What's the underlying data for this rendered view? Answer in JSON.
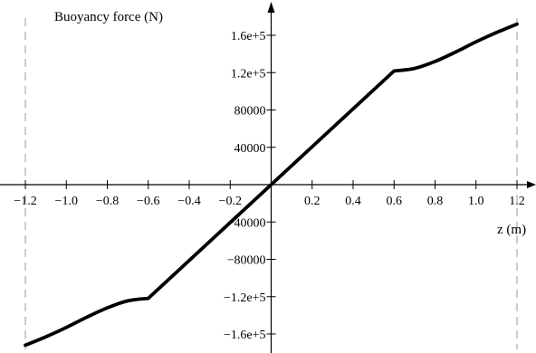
{
  "chart_data": {
    "type": "line",
    "title": "",
    "xlabel": "z (m)",
    "ylabel": "Buoyancy force (N)",
    "xlim": [
      -1.2,
      1.2
    ],
    "ylim": [
      -170000.0,
      180000.0
    ],
    "grid": false,
    "x_ticks": [
      -1.2,
      -1.0,
      -0.8,
      -0.6,
      -0.4,
      -0.2,
      0.2,
      0.4,
      0.6,
      0.8,
      1.0,
      1.2
    ],
    "x_tick_labels": [
      "−1.2",
      "−1.0",
      "−0.8",
      "−0.6",
      "−0.4",
      "−0.2",
      "0.2",
      "0.4",
      "0.6",
      "0.8",
      "1.0",
      "1.2"
    ],
    "y_ticks": [
      160000,
      120000,
      80000,
      40000,
      -40000,
      -80000,
      -120000,
      -160000
    ],
    "y_tick_labels": [
      "1.6e+5",
      "1.2e+5",
      "80000",
      "40000",
      "−40000",
      "−80000",
      "−1.2e+5",
      "−1.6e+5"
    ],
    "reference_lines_x": [
      -1.2,
      1.2
    ],
    "series": [
      {
        "x": [
          -1.2,
          -1.1,
          -1.0,
          -0.9,
          -0.8,
          -0.7,
          -0.6,
          0.0,
          0.6,
          0.7,
          0.8,
          0.9,
          1.0,
          1.1,
          1.2
        ],
        "y": [
          -172000,
          -163000,
          -153000,
          -142000,
          -132000,
          -124500,
          -121800,
          0,
          121800,
          124500,
          132000,
          142000,
          153000,
          163000,
          172000
        ],
        "color": "#000000"
      }
    ]
  }
}
